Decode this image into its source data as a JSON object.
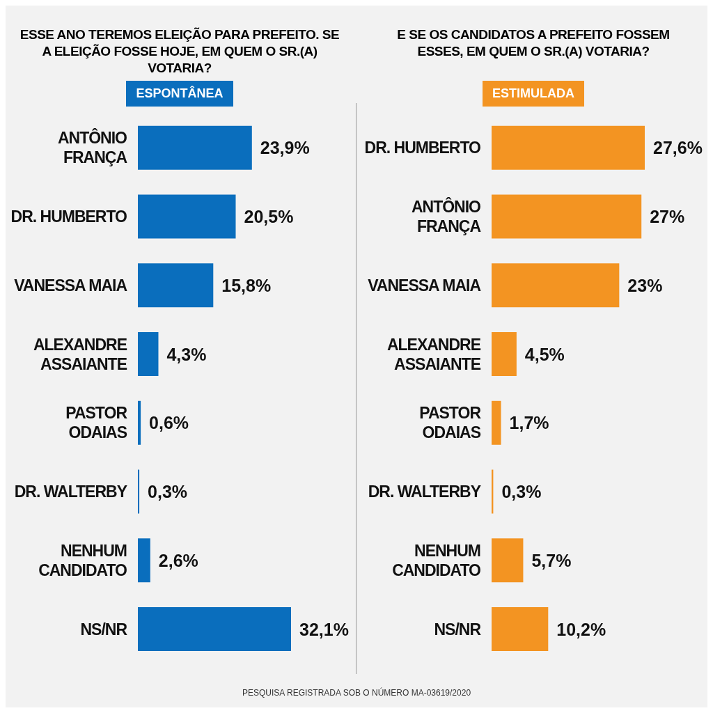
{
  "chart_data": [
    {
      "type": "bar",
      "orientation": "horizontal",
      "title": "ESSE ANO TEREMOS ELEIÇÃO PARA PREFEITO. SE A ELEIÇÃO FOSSE HOJE, EM QUEM O SR.(A) VOTARIA?",
      "subtitle": "ESPONTÂNEA",
      "categories": [
        "ANTÔNIO FRANÇA",
        "DR. HUMBERTO",
        "VANESSA MAIA",
        "ALEXANDRE ASSAIANTE",
        "PASTOR ODAIAS",
        "DR. WALTERBY",
        "NENHUM CANDIDATO",
        "NS/NR"
      ],
      "values": [
        23.9,
        20.5,
        15.8,
        4.3,
        0.6,
        0.3,
        2.6,
        32.1
      ],
      "value_labels": [
        "23,9%",
        "20,5%",
        "15,8%",
        "4,3%",
        "0,6%",
        "0,3%",
        "2,6%",
        "32,1%"
      ],
      "color": "#0a6ebd",
      "grid": false,
      "legend": false
    },
    {
      "type": "bar",
      "orientation": "horizontal",
      "title": "E SE OS CANDIDATOS A PREFEITO FOSSEM ESSES, EM QUEM O SR.(A) VOTARIA?",
      "subtitle": "ESTIMULADA",
      "categories": [
        "DR. HUMBERTO",
        "ANTÔNIO FRANÇA",
        "VANESSA MAIA",
        "ALEXANDRE ASSAIANTE",
        "PASTOR ODAIAS",
        "DR. WALTERBY",
        "NENHUM CANDIDATO",
        "NS/NR"
      ],
      "values": [
        27.6,
        27,
        23,
        4.5,
        1.7,
        0.3,
        5.7,
        10.2
      ],
      "value_labels": [
        "27,6%",
        "27%",
        "23%",
        "4,5%",
        "1,7%",
        "0,3%",
        "5,7%",
        "10,2%"
      ],
      "color": "#f39422",
      "grid": false,
      "legend": false,
      "annotations": [
        "PESQUISA REGISTRADA SOB O NÚMERO MA-03619/2020"
      ]
    }
  ]
}
